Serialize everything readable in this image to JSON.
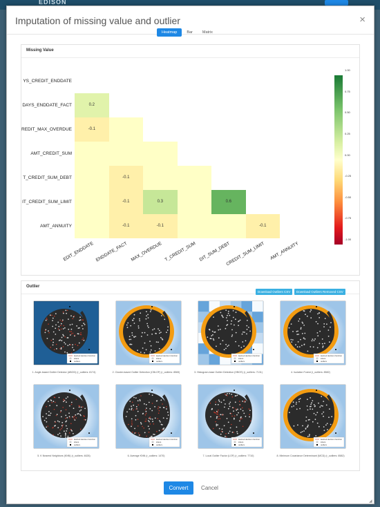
{
  "background": {
    "app_name": "EDISON"
  },
  "modal": {
    "title": "Imputation of missing value and outlier",
    "close": "×",
    "convert_label": "Convert",
    "cancel_label": "Cancel"
  },
  "missing": {
    "section_title": "Missing Value",
    "tabs": [
      "Heatmap",
      "Bar",
      "Matrix"
    ],
    "active_tab": "Heatmap"
  },
  "chart_data": {
    "type": "heatmap",
    "row_labels": [
      "YS_CREDIT_ENDDATE",
      "DAYS_ENDDATE_FACT",
      "REDIT_MAX_OVERDUE",
      "AMT_CREDIT_SUM",
      "T_CREDIT_SUM_DEBT",
      "IT_CREDIT_SUM_LIMIT",
      "AMT_ANNUITY"
    ],
    "col_labels": [
      "EDIT_ENDDATE",
      "ENDDATE_FACT",
      "MAX_OVERDUE",
      "T_CREDIT_SUM",
      "DIT_SUM_DEBT",
      "CREDIT_SUM_LIMIT",
      "AMT_ANNUITY"
    ],
    "values": [
      [
        null,
        null,
        null,
        null,
        null,
        null,
        null
      ],
      [
        0.2,
        null,
        null,
        null,
        null,
        null,
        null
      ],
      [
        -0.1,
        0,
        null,
        null,
        null,
        null,
        null
      ],
      [
        0,
        0,
        0,
        null,
        null,
        null,
        null
      ],
      [
        0,
        -0.1,
        0,
        0,
        null,
        null,
        null
      ],
      [
        0,
        -0.1,
        0.3,
        0,
        0.6,
        null,
        null
      ],
      [
        0,
        -0.1,
        -0.1,
        0,
        0,
        -0.1,
        null
      ]
    ],
    "colorbar_ticks": [
      "1.00",
      "0.75",
      "0.50",
      "0.25",
      "0.00",
      "-0.25",
      "-0.50",
      "-0.75",
      "-1.00"
    ],
    "vmin": -1,
    "vmax": 1
  },
  "outlier": {
    "section_title": "Outlier",
    "download_outliers": "Download Outliers CSV",
    "download_removed": "Download Outliers Removed CSV",
    "plots": [
      {
        "caption": "1. Angle-based Outlier Detector (ABOD) (r_outliers: 8174)",
        "style": "abod"
      },
      {
        "caption": "2. Cluster-based Outlier Detection (CBLOF) (r_outliers: 8565)",
        "style": "orange"
      },
      {
        "caption": "3. Histogram-base Outlier Detection (HBOS) (r_outliers: 7131)",
        "style": "hbos"
      },
      {
        "caption": "4. Isolation Forest (r_outliers: 8582)",
        "style": "orange"
      },
      {
        "caption": "5. K Nearest Neighbors (KNN) (r_outliers: 4626)",
        "style": "knn"
      },
      {
        "caption": "6. Average KNN (r_outliers: 1470)",
        "style": "knn"
      },
      {
        "caption": "7. Local Outlier Factor (LOF) (r_outliers: 7710)",
        "style": "knn"
      },
      {
        "caption": "8. Minimum Covariance Determinant (MCD) (r_outliers: 8582)",
        "style": "orange2"
      }
    ],
    "legend": [
      "learned decision function",
      "inliers",
      "outliers"
    ]
  },
  "colors": {
    "accent": "#1e88e5",
    "download": "#3ab0e2",
    "orange": "#f39c12",
    "blue_dark": "#1f5f96"
  }
}
